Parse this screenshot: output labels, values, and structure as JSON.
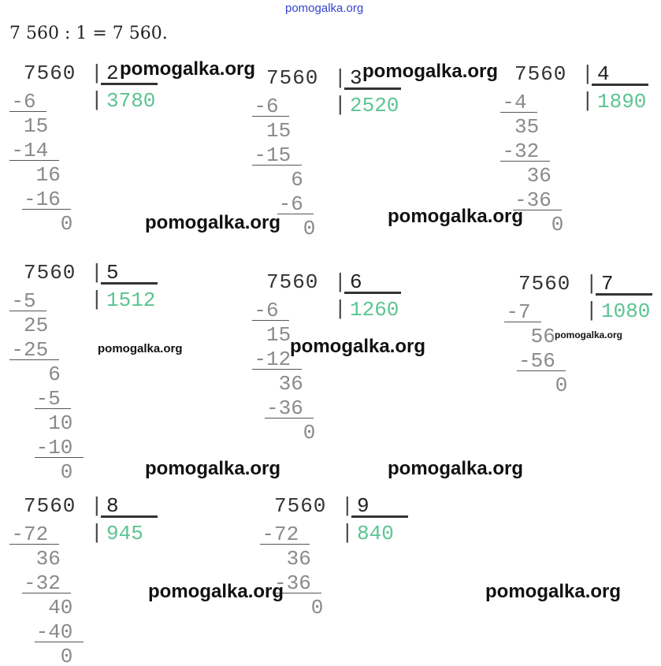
{
  "header_watermark": "pomogalka.org",
  "equation": "7 560 : 1 = 7 560.",
  "watermark": "pomogalka.org",
  "colors": {
    "quotient": "#5cc492",
    "header_watermark": "#3344cc"
  },
  "divisions": [
    {
      "dividend": "7560",
      "divisor": "2",
      "quotient": "3780",
      "steps": [
        "-6",
        "15",
        "-14",
        "16",
        "-16",
        "0"
      ]
    },
    {
      "dividend": "7560",
      "divisor": "3",
      "quotient": "2520",
      "steps": [
        "-6",
        "15",
        "-15",
        "6",
        "-6",
        "0"
      ]
    },
    {
      "dividend": "7560",
      "divisor": "4",
      "quotient": "1890",
      "steps": [
        "-4",
        "35",
        "-32",
        "36",
        "-36",
        "0"
      ]
    },
    {
      "dividend": "7560",
      "divisor": "5",
      "quotient": "1512",
      "steps": [
        "-5",
        "25",
        "-25",
        "6",
        "-5",
        "10",
        "-10",
        "0"
      ]
    },
    {
      "dividend": "7560",
      "divisor": "6",
      "quotient": "1260",
      "steps": [
        "-6",
        "15",
        "-12",
        "36",
        "-36",
        "0"
      ]
    },
    {
      "dividend": "7560",
      "divisor": "7",
      "quotient": "1080",
      "steps": [
        "-7",
        "56",
        "-56",
        "0"
      ]
    },
    {
      "dividend": "7560",
      "divisor": "8",
      "quotient": "945",
      "steps": [
        "-72",
        "36",
        "-32",
        "40",
        "-40",
        "0"
      ]
    },
    {
      "dividend": "7560",
      "divisor": "9",
      "quotient": "840",
      "steps": [
        "-72",
        "36",
        "-36",
        "0"
      ]
    }
  ]
}
